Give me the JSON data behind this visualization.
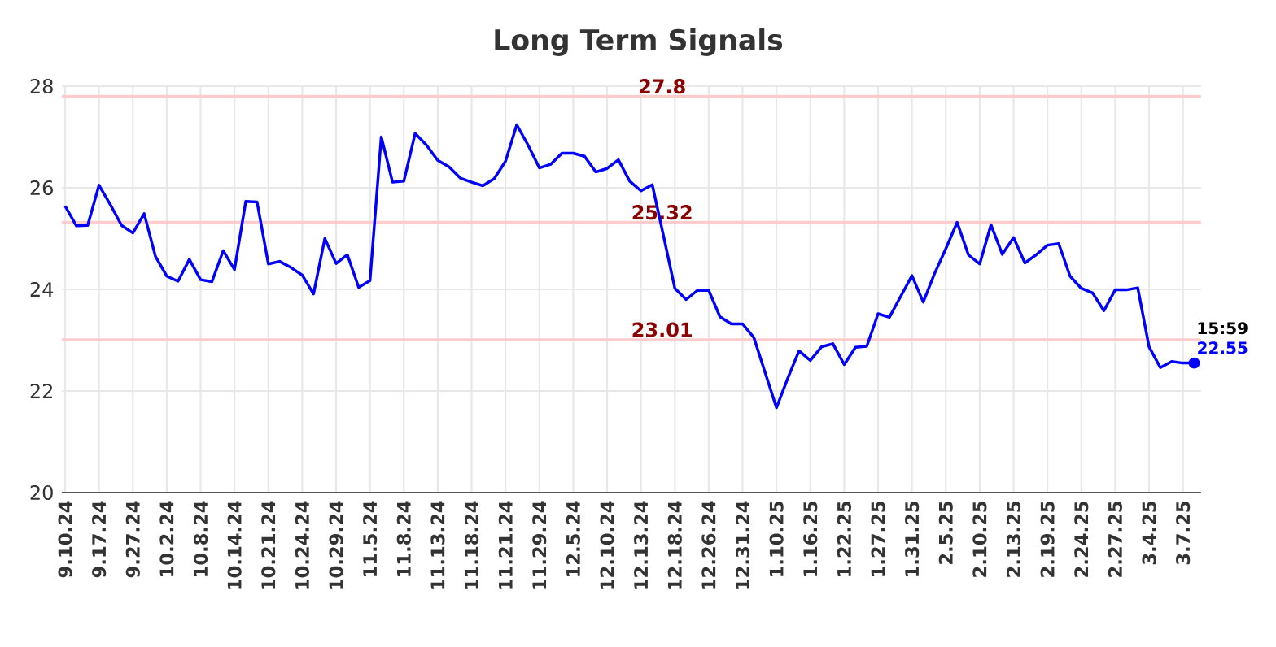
{
  "chart_data": {
    "type": "line",
    "title": "Long Term Signals",
    "categories": [
      "9.10.24",
      null,
      null,
      "9.17.24",
      null,
      null,
      "9.27.24",
      null,
      null,
      "10.2.24",
      null,
      null,
      "10.8.24",
      null,
      null,
      "10.14.24",
      null,
      null,
      "10.21.24",
      null,
      null,
      "10.24.24",
      null,
      null,
      "10.29.24",
      null,
      null,
      "11.5.24",
      null,
      null,
      "11.8.24",
      null,
      null,
      "11.13.24",
      null,
      null,
      "11.18.24",
      null,
      null,
      "11.21.24",
      null,
      null,
      "11.29.24",
      null,
      null,
      "12.5.24",
      null,
      null,
      "12.10.24",
      null,
      null,
      "12.13.24",
      null,
      null,
      "12.18.24",
      null,
      null,
      "12.26.24",
      null,
      null,
      "12.31.24",
      null,
      null,
      "1.10.25",
      null,
      null,
      "1.16.25",
      null,
      null,
      "1.22.25",
      null,
      null,
      "1.27.25",
      null,
      null,
      "1.31.25",
      null,
      null,
      "2.5.25",
      null,
      null,
      "2.10.25",
      null,
      null,
      "2.13.25",
      null,
      null,
      "2.19.25",
      null,
      null,
      "2.24.25",
      null,
      null,
      "2.27.25",
      null,
      null,
      "3.4.25",
      null,
      null,
      "3.7.25",
      null
    ],
    "values": [
      25.64,
      25.25,
      25.26,
      26.05,
      25.67,
      25.26,
      25.11,
      25.49,
      24.65,
      24.26,
      24.16,
      24.59,
      24.19,
      24.15,
      24.76,
      24.39,
      25.73,
      25.72,
      24.5,
      24.55,
      24.43,
      24.28,
      23.91,
      25.0,
      24.51,
      24.68,
      24.04,
      24.17,
      27.0,
      26.11,
      26.13,
      27.07,
      26.84,
      26.54,
      26.41,
      26.19,
      26.11,
      26.04,
      26.18,
      26.52,
      27.24,
      26.84,
      26.39,
      26.46,
      26.68,
      26.68,
      26.62,
      26.31,
      26.38,
      26.55,
      26.13,
      25.94,
      26.06,
      25.05,
      24.02,
      23.8,
      23.98,
      23.98,
      23.46,
      23.32,
      23.32,
      23.05,
      22.36,
      21.67,
      22.25,
      22.79,
      22.6,
      22.87,
      22.93,
      22.52,
      22.86,
      22.88,
      23.52,
      23.45,
      23.86,
      24.27,
      23.75,
      24.31,
      24.8,
      25.32,
      24.68,
      24.5,
      25.27,
      24.69,
      25.02,
      24.52,
      24.68,
      24.87,
      24.9,
      24.26,
      24.02,
      23.93,
      23.58,
      23.99,
      23.99,
      24.03,
      22.87,
      22.46,
      22.58,
      22.55,
      22.55
    ],
    "value_labels": [
      null,
      null,
      null,
      null,
      null,
      null,
      null,
      null,
      null,
      null,
      null,
      null,
      null,
      null,
      null,
      null,
      null,
      null,
      null,
      null,
      null,
      null,
      null,
      null,
      null,
      null,
      null,
      null,
      null,
      null,
      null,
      null,
      null,
      null,
      null,
      null,
      null,
      null,
      null,
      null,
      null,
      null,
      null,
      null,
      null,
      null,
      null,
      null,
      null,
      null,
      null,
      null,
      null,
      null,
      null,
      null,
      null,
      null,
      null,
      null,
      null,
      null,
      null,
      null,
      null,
      null,
      null,
      null,
      null,
      null,
      null,
      null,
      null,
      null,
      null,
      null,
      null,
      null,
      null,
      null,
      null,
      null,
      null,
      null,
      null,
      null,
      null,
      null,
      null,
      null,
      null,
      null,
      null,
      null,
      null,
      null,
      null,
      null,
      null,
      null,
      "22.55"
    ],
    "color": "#0000ff",
    "ylim": [
      20,
      28
    ],
    "yticks": [
      20,
      22,
      24,
      26,
      28
    ],
    "grid": true,
    "marker": "none",
    "line_style": "solid",
    "ref_lines": [
      {
        "axis": "y",
        "value": 27.8,
        "label": "27.8",
        "color": "#ffcccc"
      },
      {
        "axis": "y",
        "value": 25.32,
        "label": "25.32",
        "color": "#ffcccc"
      },
      {
        "axis": "y",
        "value": 23.01,
        "label": "23.01",
        "color": "#ffcccc"
      }
    ],
    "annotations": [
      "15:59"
    ]
  }
}
